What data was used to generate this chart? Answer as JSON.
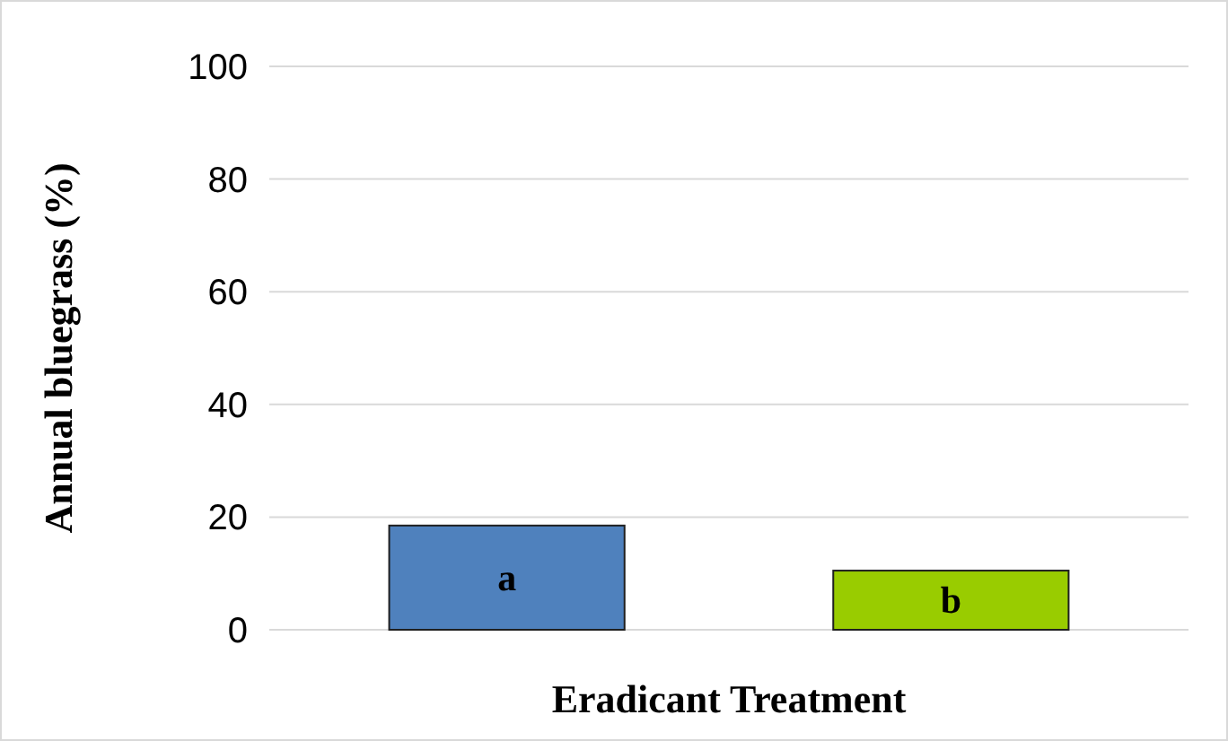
{
  "chart_data": {
    "type": "bar",
    "ylabel": "Annual bluegrass (%)",
    "xlabel": "Eradicant Treatment",
    "categories": [
      null,
      null
    ],
    "values": [
      18.5,
      10.5
    ],
    "colors": [
      "#4f81bd",
      "#99cc00"
    ],
    "value_labels": [
      "a",
      "b"
    ],
    "ylim": [
      0,
      100
    ],
    "yticks": [
      0,
      20,
      40,
      60,
      80,
      100
    ],
    "grid": "y"
  }
}
